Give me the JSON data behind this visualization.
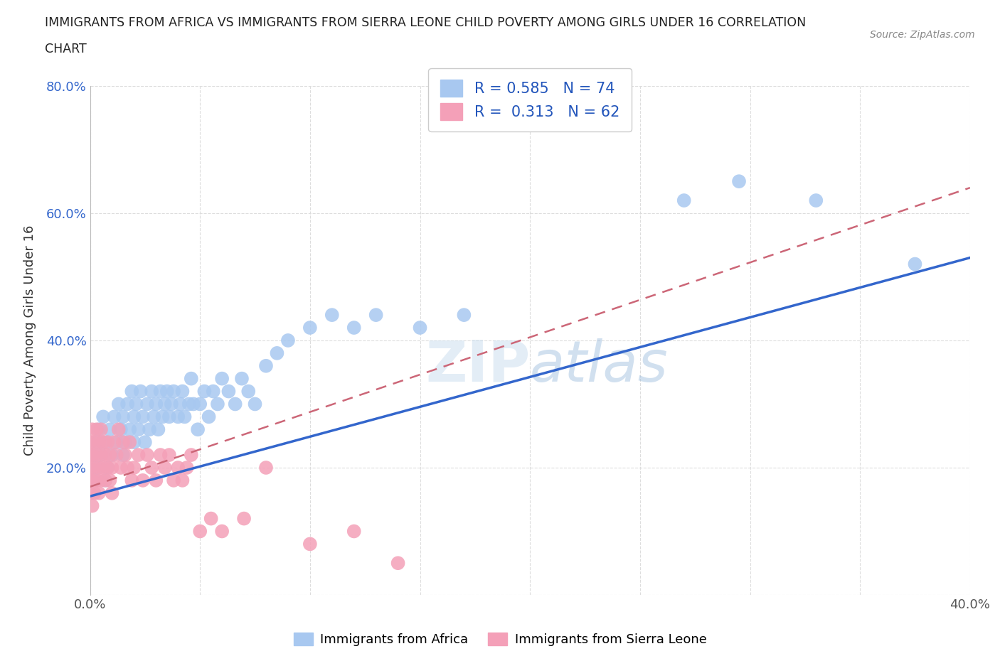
{
  "title_line1": "IMMIGRANTS FROM AFRICA VS IMMIGRANTS FROM SIERRA LEONE CHILD POVERTY AMONG GIRLS UNDER 16 CORRELATION",
  "title_line2": "CHART",
  "source": "Source: ZipAtlas.com",
  "ylabel": "Child Poverty Among Girls Under 16",
  "xlim": [
    0,
    0.4
  ],
  "ylim": [
    0,
    0.8
  ],
  "xtick_labels": [
    "0.0%",
    "",
    "",
    "",
    "",
    "",
    "",
    "",
    "40.0%"
  ],
  "ytick_labels": [
    "",
    "20.0%",
    "40.0%",
    "60.0%",
    "80.0%"
  ],
  "africa_R": 0.585,
  "africa_N": 74,
  "sierra_leone_R": 0.313,
  "sierra_leone_N": 62,
  "africa_color": "#a8c8f0",
  "sierra_leone_color": "#f4a0b8",
  "africa_line_color": "#3366cc",
  "sierra_leone_line_color": "#cc6677",
  "watermark": "ZIPatlas",
  "background_color": "#ffffff",
  "grid_color": "#dddddd",
  "africa_scatter_x": [
    0.001,
    0.002,
    0.003,
    0.003,
    0.004,
    0.005,
    0.006,
    0.007,
    0.007,
    0.008,
    0.009,
    0.01,
    0.011,
    0.012,
    0.013,
    0.014,
    0.015,
    0.015,
    0.016,
    0.017,
    0.018,
    0.019,
    0.02,
    0.02,
    0.021,
    0.022,
    0.023,
    0.024,
    0.025,
    0.026,
    0.027,
    0.028,
    0.029,
    0.03,
    0.031,
    0.032,
    0.033,
    0.034,
    0.035,
    0.036,
    0.037,
    0.038,
    0.04,
    0.041,
    0.042,
    0.043,
    0.045,
    0.046,
    0.047,
    0.049,
    0.05,
    0.052,
    0.054,
    0.056,
    0.058,
    0.06,
    0.063,
    0.066,
    0.069,
    0.072,
    0.075,
    0.08,
    0.085,
    0.09,
    0.1,
    0.11,
    0.12,
    0.13,
    0.15,
    0.17,
    0.27,
    0.295,
    0.33,
    0.375
  ],
  "africa_scatter_y": [
    0.22,
    0.18,
    0.24,
    0.2,
    0.26,
    0.22,
    0.28,
    0.24,
    0.18,
    0.2,
    0.26,
    0.22,
    0.28,
    0.24,
    0.3,
    0.26,
    0.22,
    0.28,
    0.24,
    0.3,
    0.26,
    0.32,
    0.28,
    0.24,
    0.3,
    0.26,
    0.32,
    0.28,
    0.24,
    0.3,
    0.26,
    0.32,
    0.28,
    0.3,
    0.26,
    0.32,
    0.28,
    0.3,
    0.32,
    0.28,
    0.3,
    0.32,
    0.28,
    0.3,
    0.32,
    0.28,
    0.3,
    0.34,
    0.3,
    0.26,
    0.3,
    0.32,
    0.28,
    0.32,
    0.3,
    0.34,
    0.32,
    0.3,
    0.34,
    0.32,
    0.3,
    0.36,
    0.38,
    0.4,
    0.42,
    0.44,
    0.42,
    0.44,
    0.42,
    0.44,
    0.62,
    0.65,
    0.62,
    0.52
  ],
  "sierra_leone_scatter_x": [
    0.0,
    0.0,
    0.0,
    0.0,
    0.0,
    0.001,
    0.001,
    0.001,
    0.001,
    0.002,
    0.002,
    0.002,
    0.003,
    0.003,
    0.003,
    0.004,
    0.004,
    0.004,
    0.005,
    0.005,
    0.005,
    0.006,
    0.006,
    0.007,
    0.007,
    0.008,
    0.008,
    0.009,
    0.009,
    0.01,
    0.01,
    0.011,
    0.012,
    0.013,
    0.014,
    0.015,
    0.016,
    0.017,
    0.018,
    0.019,
    0.02,
    0.022,
    0.024,
    0.026,
    0.028,
    0.03,
    0.032,
    0.034,
    0.036,
    0.038,
    0.04,
    0.042,
    0.044,
    0.046,
    0.05,
    0.055,
    0.06,
    0.07,
    0.08,
    0.1,
    0.12,
    0.14
  ],
  "sierra_leone_scatter_y": [
    0.18,
    0.2,
    0.22,
    0.16,
    0.24,
    0.18,
    0.22,
    0.26,
    0.14,
    0.2,
    0.24,
    0.16,
    0.22,
    0.18,
    0.26,
    0.2,
    0.24,
    0.16,
    0.22,
    0.18,
    0.26,
    0.2,
    0.24,
    0.18,
    0.22,
    0.2,
    0.24,
    0.18,
    0.22,
    0.2,
    0.16,
    0.24,
    0.22,
    0.26,
    0.2,
    0.24,
    0.22,
    0.2,
    0.24,
    0.18,
    0.2,
    0.22,
    0.18,
    0.22,
    0.2,
    0.18,
    0.22,
    0.2,
    0.22,
    0.18,
    0.2,
    0.18,
    0.2,
    0.22,
    0.1,
    0.12,
    0.1,
    0.12,
    0.2,
    0.08,
    0.1,
    0.05
  ],
  "africa_line_x0": 0.0,
  "africa_line_y0": 0.155,
  "africa_line_x1": 0.4,
  "africa_line_y1": 0.53,
  "sl_line_x0": 0.0,
  "sl_line_y0": 0.17,
  "sl_line_x1": 0.4,
  "sl_line_y1": 0.64
}
